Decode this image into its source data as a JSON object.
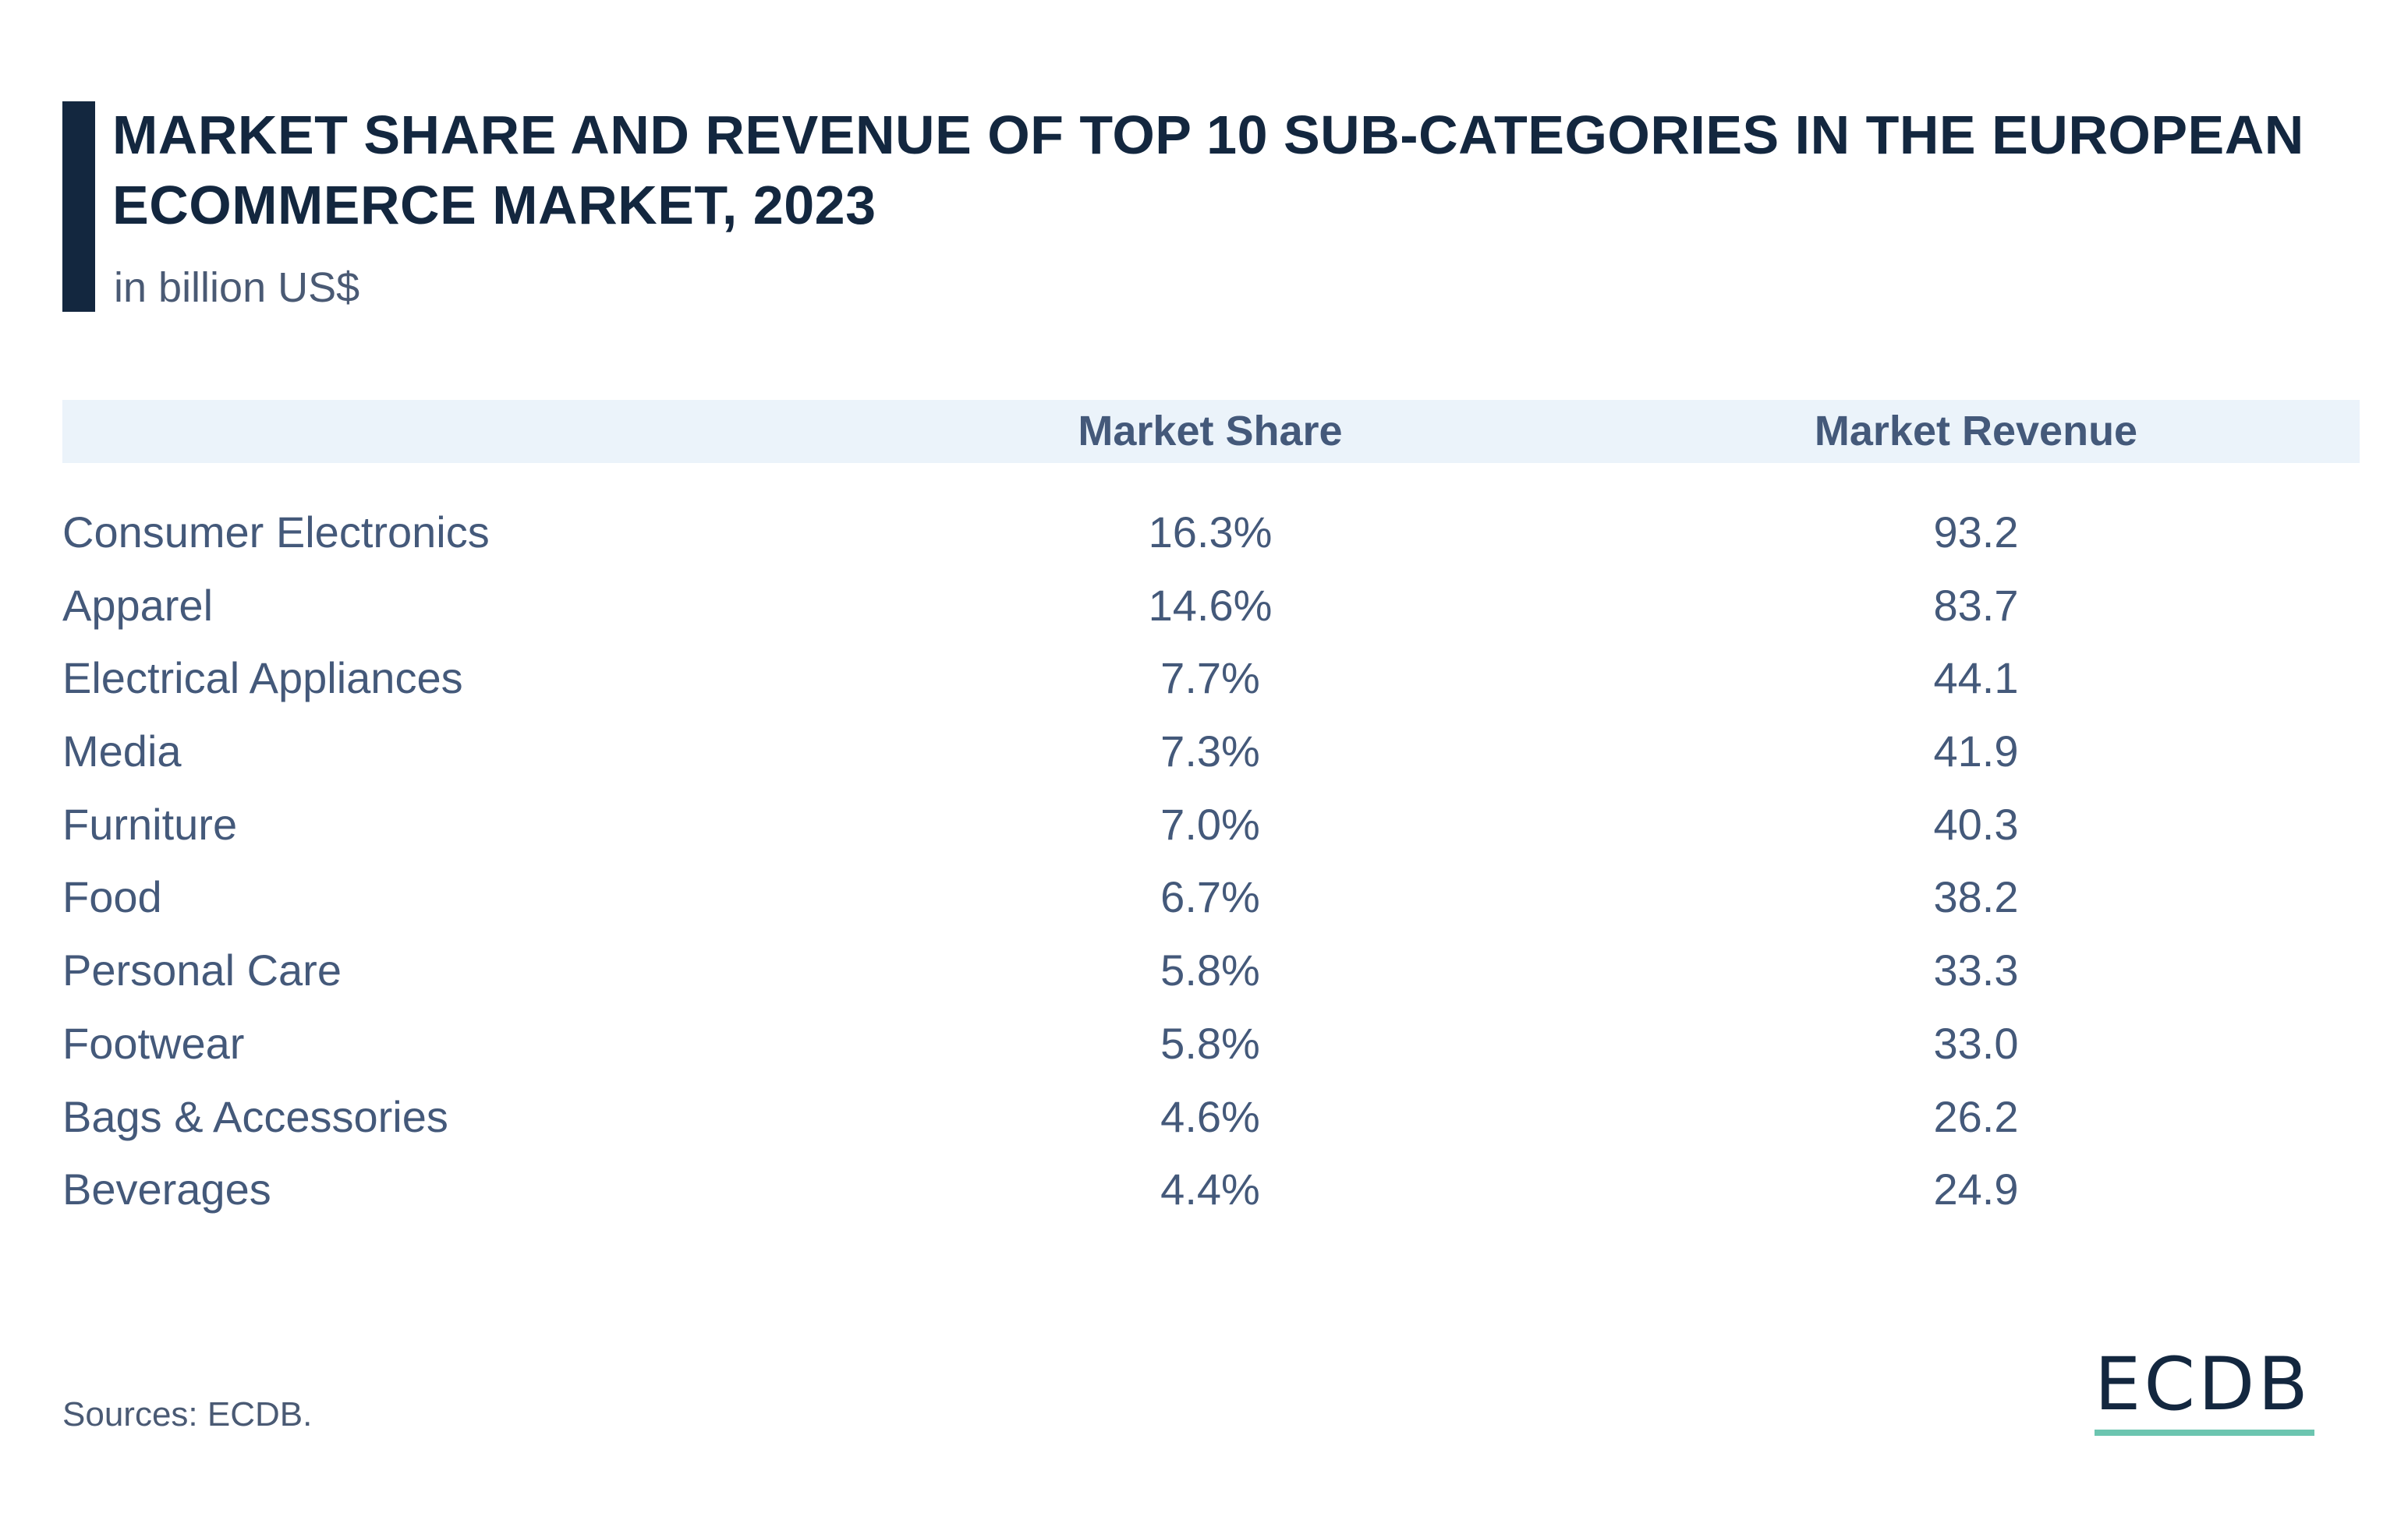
{
  "header": {
    "title": "MARKET SHARE AND REVENUE OF TOP 10 SUB-CATEGORIES IN THE EUROPEAN ECOMMERCE MARKET, 2023",
    "subtitle": "in billion US$"
  },
  "chart_data": {
    "type": "table",
    "columns": [
      "",
      "Market Share",
      "Market Revenue"
    ],
    "rows": [
      {
        "category": "Consumer Electronics",
        "share": "16.3%",
        "revenue": "93.2"
      },
      {
        "category": "Apparel",
        "share": "14.6%",
        "revenue": "83.7"
      },
      {
        "category": "Electrical Appliances",
        "share": "7.7%",
        "revenue": "44.1"
      },
      {
        "category": "Media",
        "share": "7.3%",
        "revenue": "41.9"
      },
      {
        "category": "Furniture",
        "share": "7.0%",
        "revenue": "40.3"
      },
      {
        "category": "Food",
        "share": "6.7%",
        "revenue": "38.2"
      },
      {
        "category": "Personal Care",
        "share": "5.8%",
        "revenue": "33.3"
      },
      {
        "category": "Footwear",
        "share": "5.8%",
        "revenue": "33.0"
      },
      {
        "category": "Bags & Accessories",
        "share": "4.6%",
        "revenue": "26.2"
      },
      {
        "category": "Beverages",
        "share": "4.4%",
        "revenue": "24.9"
      }
    ]
  },
  "footer": {
    "source": "Sources: ECDB.",
    "logo": "ECDB"
  },
  "colors": {
    "title": "#13273f",
    "text": "#44597a",
    "header_band": "#ebf3fa",
    "logo_accent": "#6cc5b0"
  }
}
